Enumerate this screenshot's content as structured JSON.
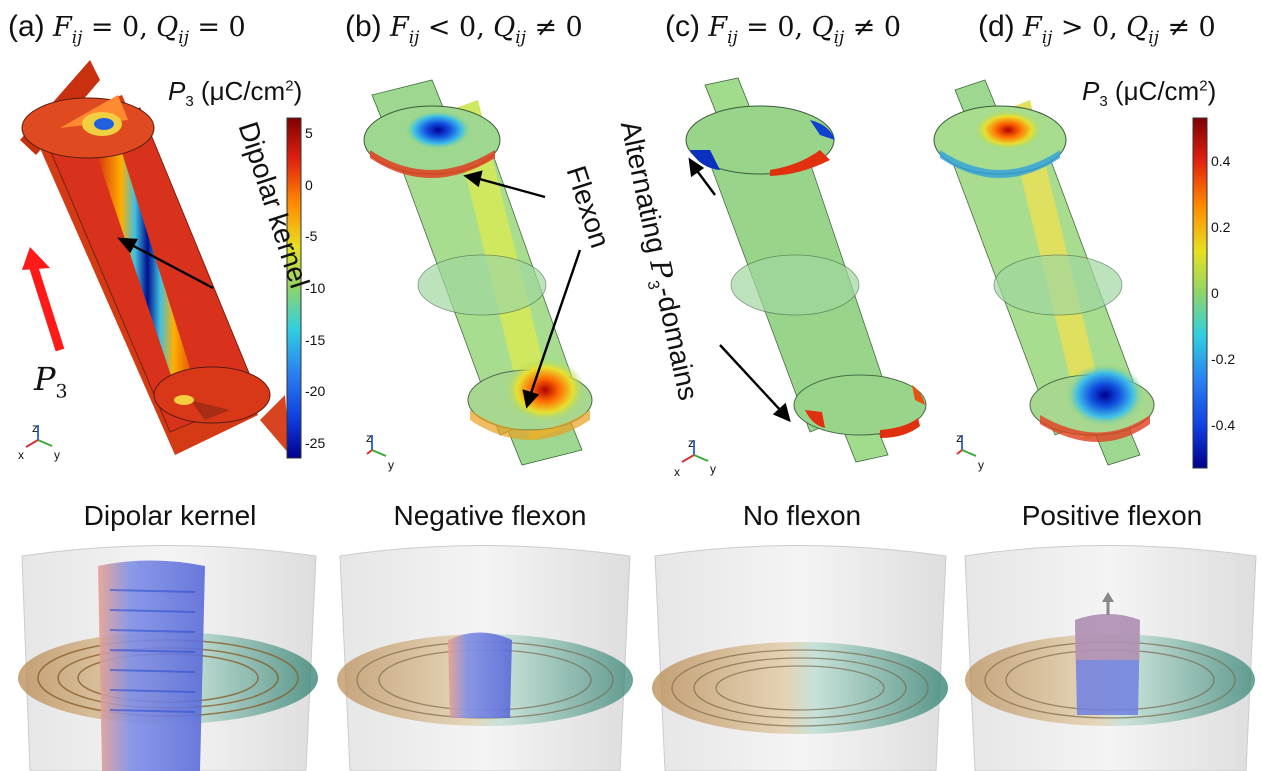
{
  "panels": [
    {
      "id": "a",
      "letter": "(a)",
      "condition_f": "F",
      "sub_f": "ij",
      "op_f": "= 0,",
      "condition_q": "Q",
      "sub_q": "ij",
      "op_q": "= 0"
    },
    {
      "id": "b",
      "letter": "(b)",
      "condition_f": "F",
      "sub_f": "ij",
      "op_f": "< 0,",
      "condition_q": "Q",
      "sub_q": "ij",
      "op_q": "≠ 0"
    },
    {
      "id": "c",
      "letter": "(c)",
      "condition_f": "F",
      "sub_f": "ij",
      "op_f": "= 0,",
      "condition_q": "Q",
      "sub_q": "ij",
      "op_q": "≠ 0"
    },
    {
      "id": "d",
      "letter": "(d)",
      "condition_f": "F",
      "sub_f": "ij",
      "op_f": "> 0,",
      "condition_q": "Q",
      "sub_q": "ij",
      "op_q": "≠ 0"
    }
  ],
  "bottom_titles": [
    "Dipolar kernel",
    "Negative flexon",
    "No flexon",
    "Positive flexon"
  ],
  "annotations": {
    "dipolar_kernel": "Dipolar kernel",
    "flexon": "Flexon",
    "alternating_prefix": "Alternating ",
    "alternating_sym": "P",
    "alternating_sub": "3",
    "alternating_suffix": "-domains",
    "p3_arrow_sym": "P",
    "p3_arrow_sub": "3"
  },
  "colorbar_left": {
    "title_sym": "P",
    "title_sub": "3",
    "title_unit": " (μC/cm",
    "title_sup": "2",
    "title_end": ")",
    "ticks": [
      "5",
      "0",
      "-5",
      "-10",
      "-15",
      "-20",
      "-25"
    ],
    "range": [
      -26.5,
      6.5
    ]
  },
  "colorbar_right": {
    "title_sym": "P",
    "title_sub": "3",
    "title_unit": " (μC/cm",
    "title_sup": "2",
    "title_end": ")",
    "ticks": [
      "0.4",
      "0.2",
      "0",
      "-0.2",
      "-0.4"
    ],
    "range": [
      -0.53,
      0.53
    ]
  },
  "axis_labels": {
    "z": "z",
    "x": "x",
    "y": "y"
  },
  "colors": {
    "jet_dark_red": "#7f0000",
    "jet_red": "#e02010",
    "jet_orange": "#ff8a00",
    "jet_yellow": "#e8e020",
    "jet_green": "#8fd46a",
    "jet_cyan": "#30d0e0",
    "jet_blue": "#1040e0",
    "jet_dark_blue": "#00008f",
    "arrow_red": "#ff1a1a",
    "arrow_black": "#000000",
    "vortex_brown": "#b8884e",
    "vortex_teal": "#2a7d6e",
    "core_blue": "#6f7fe0",
    "core_pink": "#e8a090"
  }
}
